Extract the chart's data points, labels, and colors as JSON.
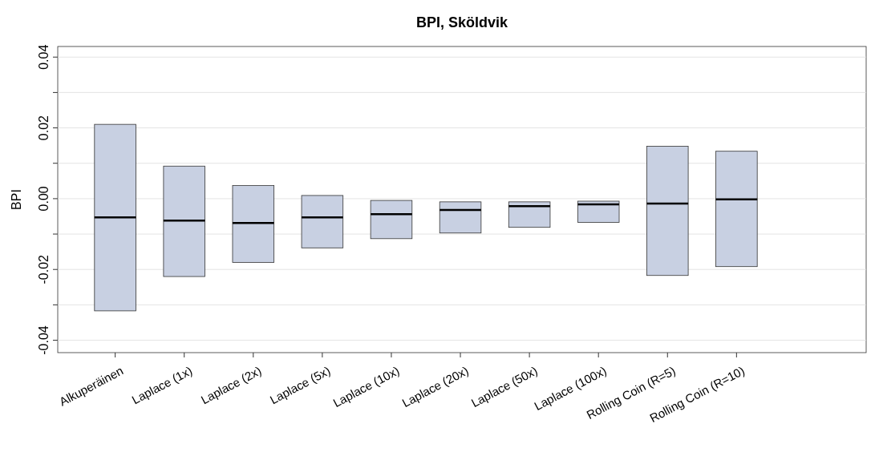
{
  "chart_data": {
    "type": "box",
    "title": "BPI, Sköldvik",
    "ylabel": "BPI",
    "categories": [
      "Alkuperäinen",
      "Laplace (1x)",
      "Laplace (2x)",
      "Laplace (5x)",
      "Laplace (10x)",
      "Laplace (20x)",
      "Laplace (50x)",
      "Laplace (100x)",
      "Rolling Coin (R=5)",
      "Rolling Coin (R=10)"
    ],
    "color": "#c8d0e2",
    "boxes": [
      {
        "low": -0.0317,
        "q1": -0.0317,
        "median": -0.0053,
        "q3": 0.021,
        "high": 0.021
      },
      {
        "low": -0.022,
        "q1": -0.022,
        "median": -0.0062,
        "q3": 0.0092,
        "high": 0.0092
      },
      {
        "low": -0.018,
        "q1": -0.018,
        "median": -0.0069,
        "q3": 0.0037,
        "high": 0.0037
      },
      {
        "low": -0.0139,
        "q1": -0.0139,
        "median": -0.0053,
        "q3": 0.0009,
        "high": 0.0009
      },
      {
        "low": -0.0113,
        "q1": -0.0113,
        "median": -0.0044,
        "q3": -0.0005,
        "high": -0.0005
      },
      {
        "low": -0.0097,
        "q1": -0.0097,
        "median": -0.0032,
        "q3": -0.0009,
        "high": -0.0009
      },
      {
        "low": -0.0081,
        "q1": -0.0081,
        "median": -0.0021,
        "q3": -0.0009,
        "high": -0.0009
      },
      {
        "low": -0.0067,
        "q1": -0.0067,
        "median": -0.0016,
        "q3": -0.0007,
        "high": -0.0007
      },
      {
        "low": -0.0217,
        "q1": -0.0217,
        "median": -0.0014,
        "q3": 0.0148,
        "high": 0.0148
      },
      {
        "low": -0.0192,
        "q1": -0.0192,
        "median": -0.0002,
        "q3": 0.0134,
        "high": 0.0134
      }
    ],
    "ylim": [
      -0.0435,
      0.043
    ],
    "yticks": [
      {
        "value": -0.04,
        "label": "-0.04"
      },
      {
        "value": -0.03,
        "label": null
      },
      {
        "value": -0.02,
        "label": "-0.02"
      },
      {
        "value": -0.01,
        "label": null
      },
      {
        "value": 0,
        "label": "0.00"
      },
      {
        "value": 0.01,
        "label": null
      },
      {
        "value": 0.02,
        "label": "0.02"
      },
      {
        "value": 0.03,
        "label": null
      },
      {
        "value": 0.04,
        "label": "0.04"
      }
    ],
    "grid": "y"
  }
}
